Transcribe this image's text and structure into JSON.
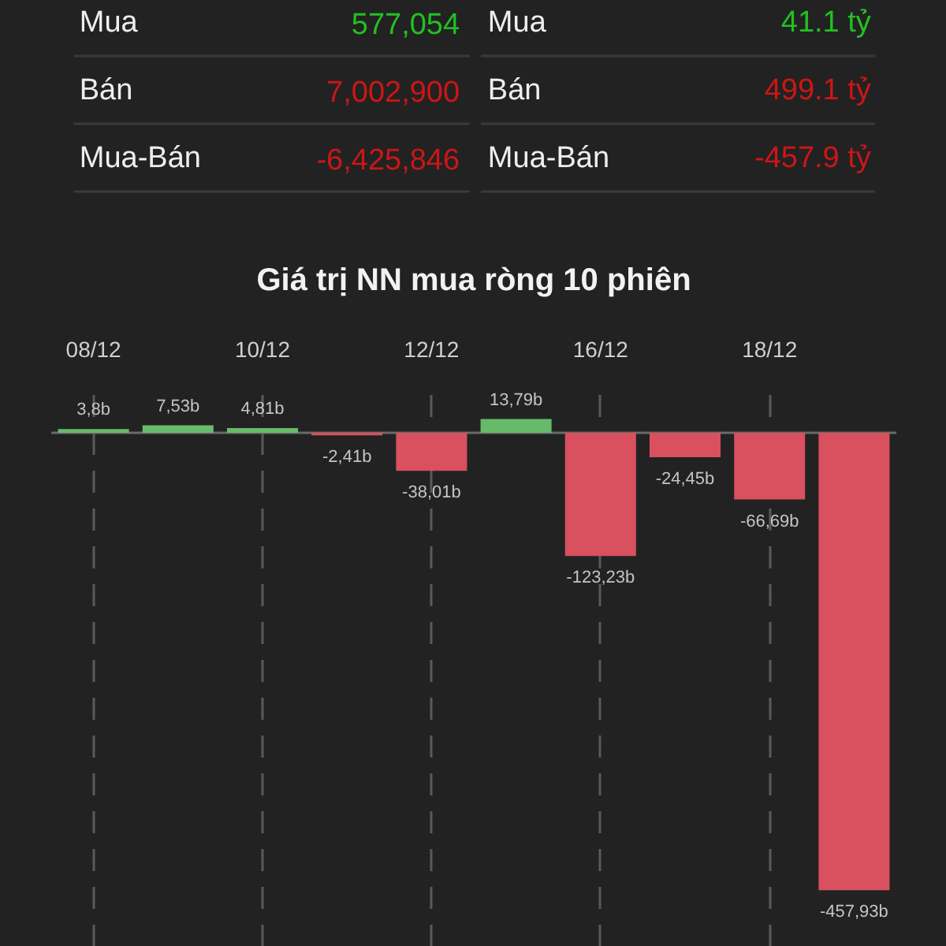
{
  "chart_data": [
    {
      "type": "other",
      "annotations": [
        "Mua",
        "577,054",
        "Bán",
        "7,002,900",
        "Mua-Bán",
        "-6,425,846",
        "Mua",
        "41.1 tỷ",
        "Bán",
        "499.1 tỷ",
        "Mua-Bán",
        "-457.9 tỷ"
      ],
      "colors": [
        "#eeeeee",
        "#22c022",
        "#eeeeee",
        "#cc1616",
        "#eeeeee",
        "#cc1616",
        "#eeeeee",
        "#22c022",
        "#eeeeee",
        "#cc1616",
        "#eeeeee",
        "#cc1616"
      ]
    },
    {
      "type": "bar",
      "title": "Giá trị NN mua ròng 10 phiên",
      "categories": [
        "08/12",
        null,
        "10/12",
        null,
        "12/12",
        null,
        "16/12",
        null,
        "18/12",
        null
      ],
      "values": [
        3.8,
        7.53,
        4.81,
        -2.41,
        -38.01,
        13.79,
        -123.23,
        -24.45,
        -66.69,
        -457.93
      ],
      "colors": [
        "#66bb6a",
        "#66bb6a",
        "#66bb6a",
        "#d9505e",
        "#d9505e",
        "#66bb6a",
        "#d9505e",
        "#d9505e",
        "#d9505e",
        "#d9505e"
      ],
      "value_labels": [
        "3,8b",
        "7,53b",
        "4,81b",
        "-2,41b",
        "-38,01b",
        "13,79b",
        "-123,23b",
        "-24,45b",
        "-66,69b",
        "-457,93b"
      ],
      "grid": "x",
      "ref_lines": [
        {
          "axis": "y",
          "value": 0,
          "color": "#6a6a6a"
        }
      ]
    }
  ]
}
